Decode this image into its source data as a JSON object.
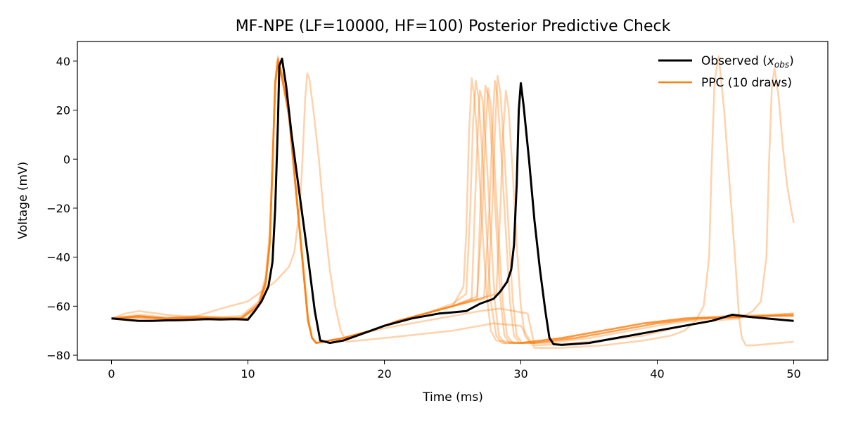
{
  "chart_data": {
    "type": "line",
    "title": "MF-NPE (LF=10000, HF=100) Posterior Predictive Check",
    "xlabel": "Time (ms)",
    "ylabel": "Voltage (mV)",
    "xlim": [
      -2.5,
      52.5
    ],
    "ylim": [
      -82,
      48
    ],
    "xticks": [
      0,
      10,
      20,
      30,
      40,
      50
    ],
    "yticks": [
      -80,
      -60,
      -40,
      -20,
      0,
      20,
      40
    ],
    "grid": false,
    "legend_position": "top-right",
    "legend": {
      "observed": {
        "text": "Observed (",
        "math": "x",
        "sub": "obs",
        "close": ")"
      },
      "ppc": {
        "text": "PPC (10 draws)"
      }
    },
    "colors": {
      "observed": "#000000",
      "ppc": "#ff7f0e"
    },
    "observed": {
      "x": [
        0,
        1,
        2,
        3,
        4,
        5,
        6,
        7,
        8,
        9,
        10,
        10.5,
        11,
        11.5,
        11.8,
        12.0,
        12.2,
        12.3,
        12.5,
        12.8,
        13.2,
        13.8,
        14.4,
        14.9,
        15.3,
        16,
        17,
        18,
        19,
        20,
        22,
        24,
        25,
        26,
        27,
        28,
        28.5,
        29.0,
        29.3,
        29.5,
        29.7,
        29.85,
        30.0,
        30.2,
        30.6,
        31.0,
        31.4,
        31.8,
        32.1,
        32.4,
        33,
        35,
        37,
        39,
        40,
        42,
        44,
        45.5,
        47,
        48,
        50
      ],
      "y": [
        -65,
        -65.5,
        -66,
        -66,
        -65.8,
        -65.7,
        -65.5,
        -65.3,
        -65.4,
        -65.3,
        -65.5,
        -62,
        -58,
        -52,
        -42,
        -20,
        15,
        38,
        41,
        30,
        10,
        -15,
        -40,
        -62,
        -74,
        -75,
        -74,
        -72,
        -70,
        -68,
        -65,
        -63,
        -62.5,
        -62,
        -59,
        -57,
        -54,
        -50,
        -45,
        -35,
        -10,
        20,
        31,
        22,
        0,
        -25,
        -45,
        -62,
        -73,
        -75.5,
        -75.8,
        -75,
        -73,
        -71,
        -70,
        -68,
        -66,
        -63.5,
        -64.5,
        -65,
        -66
      ]
    },
    "ppc_draws": [
      {
        "x": [
          0,
          1,
          3,
          5,
          7,
          9,
          10,
          10.8,
          11.3,
          11.6,
          11.8,
          12.0,
          12.2,
          12.5,
          13.0,
          13.5,
          14.0,
          14.4,
          14.7,
          15,
          17,
          19,
          21,
          23,
          25,
          25.8,
          26.0,
          26.2,
          26.4,
          26.6,
          26.9,
          27.2,
          27.5,
          27.8,
          28.2,
          30,
          33,
          36,
          39,
          42,
          45,
          48,
          50
        ],
        "y": [
          -65,
          -64.5,
          -65.2,
          -65,
          -64.5,
          -64.8,
          -65,
          -60,
          -50,
          -35,
          -5,
          30,
          41,
          35,
          20,
          -10,
          -40,
          -65,
          -73,
          -75,
          -73,
          -70,
          -66,
          -63,
          -60,
          -52,
          -30,
          10,
          33,
          25,
          0,
          -30,
          -55,
          -70,
          -74,
          -75,
          -73,
          -70,
          -67,
          -65,
          -64.5,
          -64,
          -64
        ]
      },
      {
        "x": [
          0,
          2,
          4,
          6,
          8,
          9.5,
          10.8,
          11.3,
          11.6,
          11.8,
          12.0,
          12.2,
          12.5,
          13.0,
          13.5,
          14.0,
          14.4,
          14.7,
          15,
          17,
          19,
          21,
          23,
          25,
          26.0,
          26.3,
          26.5,
          26.7,
          26.9,
          27.2,
          27.5,
          27.8,
          28.2,
          28.6,
          30,
          33,
          36,
          39,
          42,
          45,
          48,
          50
        ],
        "y": [
          -65,
          -63.5,
          -64.5,
          -64,
          -64.5,
          -64,
          -58,
          -48,
          -30,
          0,
          32,
          42,
          33,
          18,
          -12,
          -42,
          -66,
          -73,
          -75,
          -73,
          -70,
          -66,
          -63,
          -59,
          -55,
          -20,
          15,
          32,
          25,
          0,
          -30,
          -58,
          -72,
          -75,
          -75,
          -73,
          -70,
          -67,
          -65,
          -64,
          -63.5,
          -63
        ]
      },
      {
        "x": [
          0,
          2,
          4,
          6,
          8,
          9.5,
          10.8,
          11.3,
          11.6,
          11.8,
          12.0,
          12.2,
          12.5,
          13.0,
          13.5,
          14.0,
          14.4,
          14.7,
          15,
          17,
          19,
          21,
          23,
          25,
          26.8,
          27.2,
          27.4,
          27.6,
          27.8,
          28.1,
          28.4,
          28.7,
          29.0,
          29.4,
          31,
          34,
          37,
          40,
          43,
          46,
          48,
          50
        ],
        "y": [
          -65,
          -64,
          -65,
          -64.5,
          -64.8,
          -64.8,
          -59,
          -50,
          -34,
          -3,
          31,
          40,
          34,
          19,
          -11,
          -41,
          -65,
          -73,
          -75,
          -73,
          -70,
          -66,
          -63,
          -60,
          -56,
          -20,
          10,
          29,
          22,
          -5,
          -35,
          -60,
          -72,
          -75,
          -75,
          -73,
          -70,
          -67,
          -65,
          -64.5,
          -64,
          -63.5
        ]
      },
      {
        "x": [
          0,
          2,
          4,
          6,
          8,
          9.5,
          10.8,
          11.3,
          11.6,
          11.8,
          12.0,
          12.2,
          12.5,
          13.0,
          13.5,
          14.0,
          14.4,
          14.7,
          15,
          17,
          19,
          21,
          23,
          25,
          27.3,
          27.7,
          27.9,
          28.1,
          28.3,
          28.6,
          28.9,
          29.2,
          29.5,
          29.9,
          31,
          34,
          37,
          40,
          43,
          46,
          48,
          50
        ],
        "y": [
          -65,
          -64.2,
          -65,
          -64.5,
          -65,
          -65,
          -60,
          -51,
          -35,
          -4,
          30,
          40,
          33,
          18,
          -12,
          -42,
          -66,
          -73,
          -75,
          -73,
          -70,
          -66,
          -63,
          -60,
          -57,
          -20,
          10,
          32,
          25,
          0,
          -30,
          -58,
          -72,
          -75,
          -75,
          -73,
          -70,
          -67,
          -65,
          -64.5,
          -64,
          -63
        ]
      },
      {
        "x": [
          0,
          2,
          4,
          6,
          8,
          9.5,
          10.8,
          11.3,
          11.6,
          11.8,
          12.0,
          12.2,
          12.5,
          13.0,
          13.5,
          14.0,
          14.4,
          14.7,
          15,
          17,
          19,
          21,
          23,
          25,
          27.6,
          27.9,
          28.1,
          28.3,
          28.5,
          28.8,
          29.1,
          29.4,
          29.7,
          30.1,
          31,
          34,
          37,
          40,
          43,
          46,
          48,
          50
        ],
        "y": [
          -65,
          -64.5,
          -65.2,
          -64.8,
          -65,
          -65,
          -60,
          -51,
          -34,
          -3,
          31,
          41,
          34,
          19,
          -11,
          -41,
          -65,
          -73,
          -75,
          -73,
          -70,
          -66,
          -63,
          -60,
          -56,
          -20,
          10,
          34,
          27,
          2,
          -28,
          -57,
          -72,
          -75,
          -75,
          -73,
          -70,
          -67,
          -65,
          -64.5,
          -64,
          -64
        ]
      },
      {
        "x": [
          0,
          2,
          4,
          6,
          8,
          9.5,
          10.8,
          11.3,
          11.6,
          11.8,
          12.0,
          12.2,
          12.5,
          13.0,
          13.5,
          14.0,
          14.4,
          14.7,
          15,
          17,
          19,
          21,
          23,
          25,
          28.2,
          28.5,
          28.7,
          28.9,
          29.1,
          29.4,
          29.7,
          30.0,
          30.3,
          30.7,
          32,
          35,
          38,
          41,
          44,
          47,
          50
        ],
        "y": [
          -65,
          -64,
          -65,
          -64.6,
          -64.8,
          -64.8,
          -59,
          -50,
          -33,
          -2,
          32,
          41,
          34,
          19,
          -11,
          -41,
          -65,
          -73,
          -75,
          -73,
          -70,
          -66,
          -63,
          -60,
          -55,
          -20,
          10,
          28,
          21,
          -5,
          -35,
          -60,
          -72,
          -75,
          -75,
          -73,
          -70,
          -67,
          -65,
          -64,
          -63.5
        ]
      },
      {
        "x": [
          0,
          2,
          4,
          6,
          8,
          9.5,
          10.8,
          11.3,
          11.6,
          11.8,
          12.0,
          12.2,
          12.5,
          13.0,
          13.5,
          14.0,
          14.4,
          14.7,
          15,
          17,
          19,
          21,
          23,
          25,
          26.4,
          26.6,
          26.8,
          27.0,
          27.2,
          27.5,
          27.8,
          28.1,
          28.4,
          28.8,
          30,
          33,
          36,
          39,
          42,
          45,
          48,
          50
        ],
        "y": [
          -65,
          -64.2,
          -65,
          -64.5,
          -64.8,
          -64.8,
          -59,
          -50,
          -34,
          -3,
          31,
          40,
          33,
          18,
          -12,
          -42,
          -66,
          -73,
          -75,
          -73,
          -70,
          -66,
          -63,
          -60,
          -57,
          -25,
          5,
          28,
          24,
          0,
          -30,
          -58,
          -72,
          -75,
          -75,
          -73,
          -70,
          -67,
          -65,
          -64.5,
          -64,
          -63.5
        ]
      },
      {
        "x": [
          0,
          2,
          4,
          6,
          8,
          9.5,
          10.8,
          11.3,
          11.6,
          11.8,
          12.0,
          12.2,
          12.5,
          13.0,
          13.5,
          14.0,
          14.4,
          14.7,
          15,
          17,
          19,
          21,
          23,
          25,
          26.8,
          27.0,
          27.2,
          27.4,
          27.6,
          27.9,
          28.2,
          28.5,
          28.8,
          29.2,
          30,
          33,
          36,
          39,
          42,
          45,
          48,
          50
        ],
        "y": [
          -65,
          -64,
          -65,
          -64.5,
          -65,
          -65,
          -60,
          -51,
          -35,
          -4,
          30,
          40,
          33,
          18,
          -12,
          -42,
          -66,
          -73,
          -75,
          -73,
          -70,
          -66,
          -63,
          -60,
          -57,
          -25,
          5,
          30,
          26,
          2,
          -28,
          -57,
          -72,
          -75,
          -75,
          -73,
          -70,
          -67,
          -65,
          -64.5,
          -64,
          -64
        ]
      },
      {
        "x": [
          0,
          1,
          2,
          4,
          6,
          8,
          10,
          11,
          12.0,
          12.5,
          13.0,
          13.4,
          13.8,
          14.0,
          14.2,
          14.35,
          14.5,
          14.8,
          15.2,
          15.6,
          16.0,
          16.4,
          16.8,
          17.2,
          20,
          25,
          28,
          30,
          31,
          33,
          36,
          39,
          41,
          42,
          42.8,
          43.4,
          43.8,
          44.0,
          44.2,
          44.5,
          44.9,
          45.3,
          45.7,
          46.0,
          46.2,
          46.5,
          47.0,
          50
        ],
        "y": [
          -65,
          -63,
          -62,
          -63.5,
          -64.5,
          -61,
          -58,
          -54,
          -50,
          -47,
          -44,
          -38,
          -20,
          0,
          25,
          35,
          33,
          20,
          0,
          -25,
          -45,
          -60,
          -70,
          -74.5,
          -73,
          -70,
          -67,
          -68,
          -77,
          -77,
          -76,
          -74,
          -72,
          -70,
          -66,
          -60,
          -40,
          0,
          32,
          42,
          20,
          -10,
          -40,
          -65,
          -73,
          -76,
          -76,
          -74.5
        ]
      },
      {
        "x": [
          0,
          2,
          4,
          6,
          8,
          10,
          10.8,
          11.3,
          11.6,
          11.8,
          12.0,
          12.2,
          12.5,
          13.0,
          13.5,
          14.0,
          14.4,
          14.7,
          15,
          17,
          20,
          23,
          25,
          27,
          28.5,
          29.5,
          30.5,
          31,
          33,
          36,
          39,
          42,
          44,
          46,
          47,
          47.6,
          48.0,
          48.2,
          48.4,
          48.6,
          48.9,
          49.2,
          49.5,
          49.8,
          50
        ],
        "y": [
          -65,
          -64.5,
          -65,
          -64.5,
          -64.8,
          -65,
          -59,
          -50,
          -34,
          -3,
          31,
          40,
          33,
          18,
          -12,
          -42,
          -66,
          -73,
          -75,
          -73,
          -69,
          -66,
          -64,
          -62,
          -61,
          -62,
          -63,
          -76,
          -75.5,
          -74,
          -72,
          -68,
          -66,
          -65,
          -62,
          -58,
          -40,
          0,
          30,
          37,
          25,
          5,
          -10,
          -20,
          -26
        ]
      }
    ]
  }
}
